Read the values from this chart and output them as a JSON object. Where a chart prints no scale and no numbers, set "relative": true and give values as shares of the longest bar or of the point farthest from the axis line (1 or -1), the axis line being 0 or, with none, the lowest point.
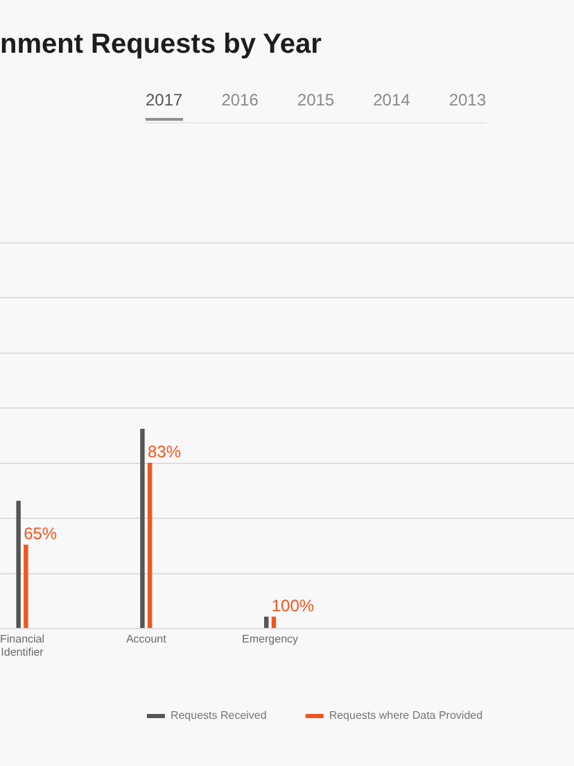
{
  "chart_data": {
    "type": "bar",
    "title": "nment Requests by Year",
    "annotations": [
      "2017",
      "2016",
      "2015",
      "2014",
      "2013",
      {
        "text": "65%",
        "x": "Financial Identifier",
        "y": 0.42
      },
      {
        "text": "83%",
        "x": "Account",
        "y": 0.83
      },
      {
        "text": "100%",
        "x": "Emergency",
        "y": 0.06
      }
    ],
    "categories": [
      "Financial Identifier",
      "Account",
      "Emergency"
    ],
    "relative": true,
    "series": [
      {
        "name": "Requests Received",
        "color": "#555555",
        "values": [
          0.64,
          1,
          0.06
        ]
      },
      {
        "name": "Requests where Data Provided",
        "color": "#f2561d",
        "values": [
          0.42,
          0.83,
          0.06
        ]
      }
    ],
    "grid": "y",
    "legend": "bottom"
  }
}
